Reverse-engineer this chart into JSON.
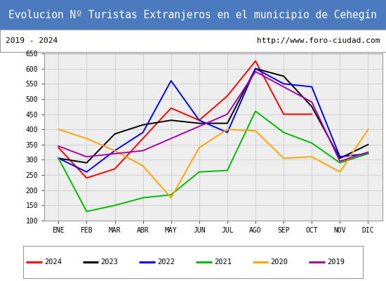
{
  "title": "Evolucion Nº Turistas Extranjeros en el municipio de Cehegín",
  "subtitle_left": "2019 - 2024",
  "subtitle_right": "http://www.foro-ciudad.com",
  "months": [
    "ENE",
    "FEB",
    "MAR",
    "ABR",
    "MAY",
    "JUN",
    "JUL",
    "AGO",
    "SEP",
    "OCT",
    "NOV",
    "DIC"
  ],
  "ylim": [
    100,
    650
  ],
  "yticks": [
    100,
    150,
    200,
    250,
    300,
    350,
    400,
    450,
    500,
    550,
    600,
    650
  ],
  "series": [
    {
      "year": "2024",
      "color": "#ff0000",
      "values": [
        340,
        240,
        270,
        370,
        470,
        430,
        510,
        625,
        450,
        450,
        null,
        null
      ]
    },
    {
      "year": "2023",
      "color": "#000000",
      "values": [
        305,
        290,
        385,
        415,
        430,
        420,
        420,
        600,
        575,
        475,
        305,
        350
      ]
    },
    {
      "year": "2022",
      "color": "#0000ff",
      "values": [
        305,
        260,
        330,
        390,
        560,
        430,
        390,
        600,
        550,
        540,
        310,
        320
      ]
    },
    {
      "year": "2021",
      "color": "#00bb00",
      "values": [
        305,
        130,
        150,
        175,
        185,
        260,
        265,
        460,
        390,
        355,
        290,
        320
      ]
    },
    {
      "year": "2020",
      "color": "#ffa500",
      "values": [
        400,
        370,
        330,
        280,
        175,
        340,
        400,
        395,
        305,
        310,
        260,
        400
      ]
    },
    {
      "year": "2019",
      "color": "#aa00aa",
      "values": [
        345,
        310,
        320,
        330,
        370,
        410,
        450,
        590,
        540,
        490,
        295,
        325
      ]
    }
  ],
  "background_color": "#ffffff",
  "title_bg_color": "#4c7abf",
  "title_text_color": "#ffffff",
  "grid_color": "#cccccc",
  "plot_bg_color": "#eeeeee",
  "border_color": "#999999"
}
